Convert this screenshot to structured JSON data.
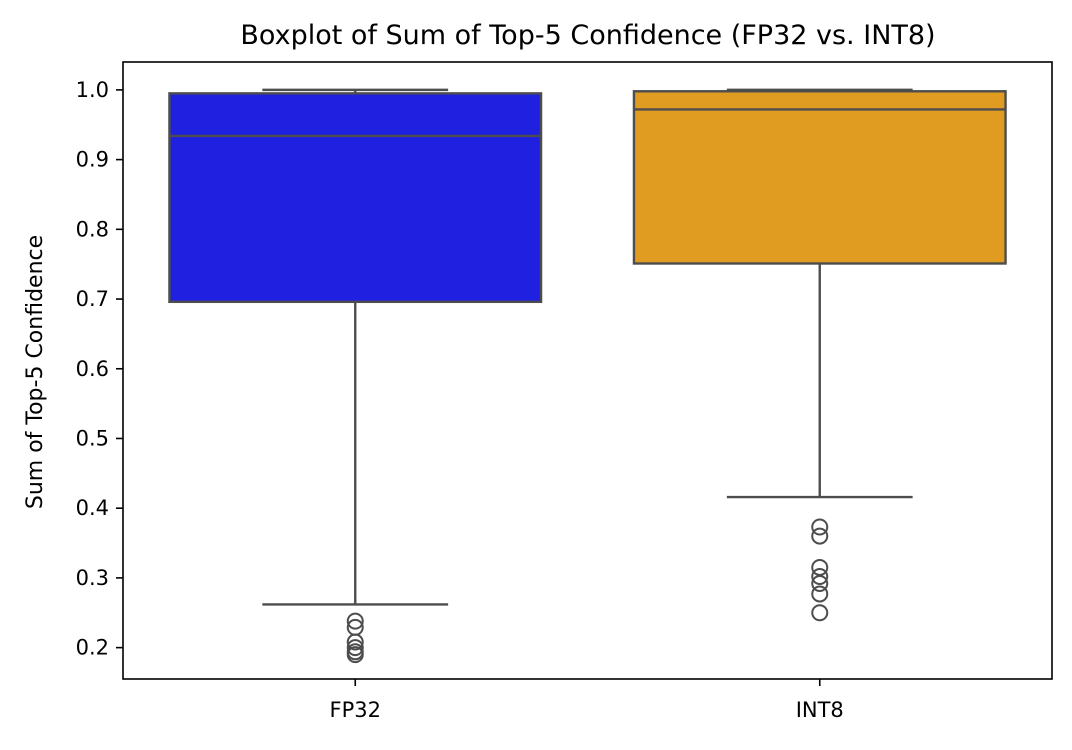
{
  "chart_data": {
    "type": "boxplot",
    "title": "Boxplot of Sum of Top-5 Confidence (FP32 vs. INT8)",
    "xlabel": "",
    "ylabel": "Sum of Top-5 Confidence",
    "ylim": [
      0.155,
      1.04
    ],
    "yticks": [
      0.2,
      0.3,
      0.4,
      0.5,
      0.6,
      0.7,
      0.8,
      0.9,
      1.0
    ],
    "ytick_labels": [
      "0.2",
      "0.3",
      "0.4",
      "0.5",
      "0.6",
      "0.7",
      "0.8",
      "0.9",
      "1.0"
    ],
    "categories": [
      "FP32",
      "INT8"
    ],
    "boxes": [
      {
        "category": "FP32",
        "color": "#2020e0",
        "whisker_low": 0.262,
        "q1": 0.696,
        "median": 0.934,
        "q3": 0.995,
        "whisker_high": 1.0,
        "outliers": [
          0.238,
          0.229,
          0.208,
          0.2,
          0.194,
          0.19
        ]
      },
      {
        "category": "INT8",
        "color": "#e09c20",
        "whisker_low": 0.416,
        "q1": 0.751,
        "median": 0.972,
        "q3": 0.998,
        "whisker_high": 1.0,
        "outliers": [
          0.373,
          0.36,
          0.315,
          0.302,
          0.292,
          0.277,
          0.25
        ]
      }
    ],
    "line_color": "#4d4d4d",
    "grid": false,
    "legend": "none"
  }
}
